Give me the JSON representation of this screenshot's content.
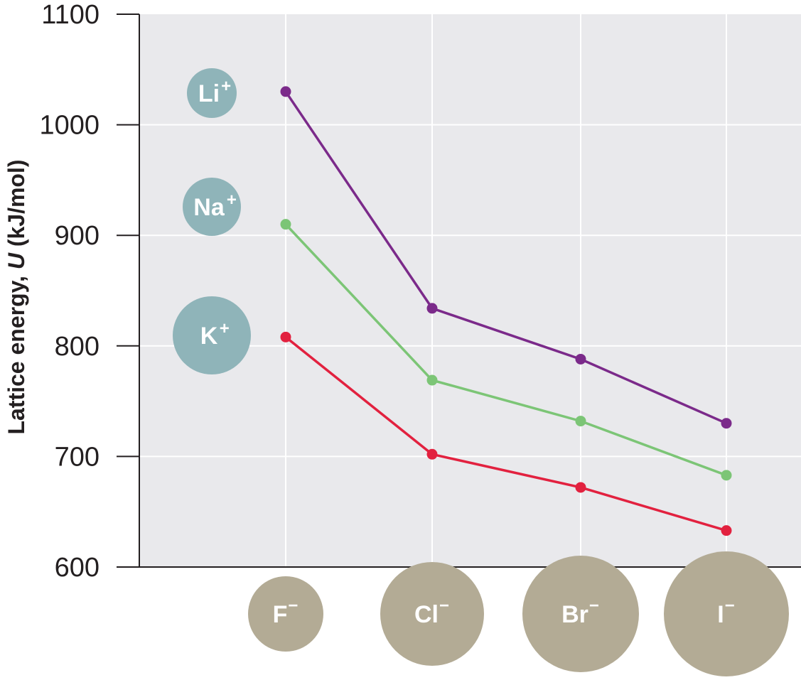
{
  "chart_data": {
    "type": "line",
    "ylabel": "Lattice energy, U (kJ/mol)",
    "ylabel_prefix": "Lattice energy, ",
    "ylabel_symbol": "U",
    "ylabel_unit": " (kJ/mol)",
    "ylim": [
      600,
      1100
    ],
    "yticks": [
      600,
      700,
      800,
      900,
      1000,
      1100
    ],
    "grid": true,
    "categories": [
      "F",
      "Cl",
      "Br",
      "I"
    ],
    "anion_labels": [
      {
        "symbol": "F",
        "charge": "−"
      },
      {
        "symbol": "Cl",
        "charge": "−"
      },
      {
        "symbol": "Br",
        "charge": "−"
      },
      {
        "symbol": "I",
        "charge": "−"
      }
    ],
    "anion_relative_size": [
      0.53,
      0.74,
      0.83,
      0.89
    ],
    "cation_labels": [
      {
        "symbol": "Li",
        "charge": "+",
        "relative_size": 0.35
      },
      {
        "symbol": "Na",
        "charge": "+",
        "relative_size": 0.42
      },
      {
        "symbol": "K",
        "charge": "+",
        "relative_size": 0.56
      }
    ],
    "series": [
      {
        "cation": "Li",
        "values": [
          1030,
          834,
          788,
          730
        ],
        "color": "#7b2a8a"
      },
      {
        "cation": "Na",
        "values": [
          910,
          769,
          732,
          683
        ],
        "color": "#7cc576"
      },
      {
        "cation": "K",
        "values": [
          808,
          702,
          672,
          633
        ],
        "color": "#e2213f"
      }
    ],
    "colors": {
      "plot_background": "#e9e9ec",
      "grid": "#ffffff",
      "axis": "#231f20",
      "cation_circle": "#8fb4b9",
      "anion_circle": "#b3ab95"
    }
  }
}
